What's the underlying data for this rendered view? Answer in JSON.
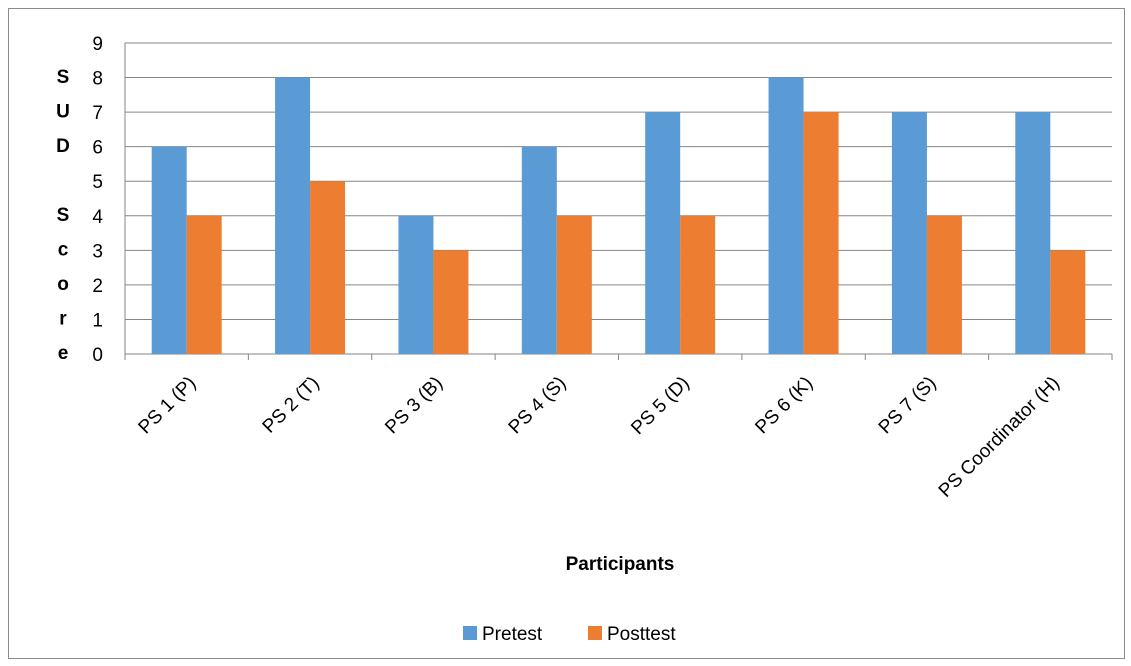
{
  "chart_data": {
    "type": "bar",
    "title": "",
    "xlabel": "Participants",
    "ylabel_letters": [
      "S",
      "U",
      "D",
      "",
      "S",
      "c",
      "o",
      "r",
      "e"
    ],
    "ylim": [
      0,
      9
    ],
    "yticks": [
      0,
      1,
      2,
      3,
      4,
      5,
      6,
      7,
      8,
      9
    ],
    "grid": true,
    "legend_position": "bottom",
    "categories": [
      "PS 1 (P)",
      "PS 2 (T)",
      "PS 3 (B)",
      "PS 4 (S)",
      "PS 5 (D)",
      "PS 6 (K)",
      "PS 7 (S)",
      "PS Coordinator (H)"
    ],
    "series": [
      {
        "name": "Pretest",
        "color": "#5b9bd5",
        "values": [
          6,
          8,
          4,
          6,
          7,
          8,
          7,
          7
        ]
      },
      {
        "name": "Posttest",
        "color": "#ed7d31",
        "values": [
          4,
          5,
          3,
          4,
          4,
          7,
          4,
          3
        ]
      }
    ]
  }
}
